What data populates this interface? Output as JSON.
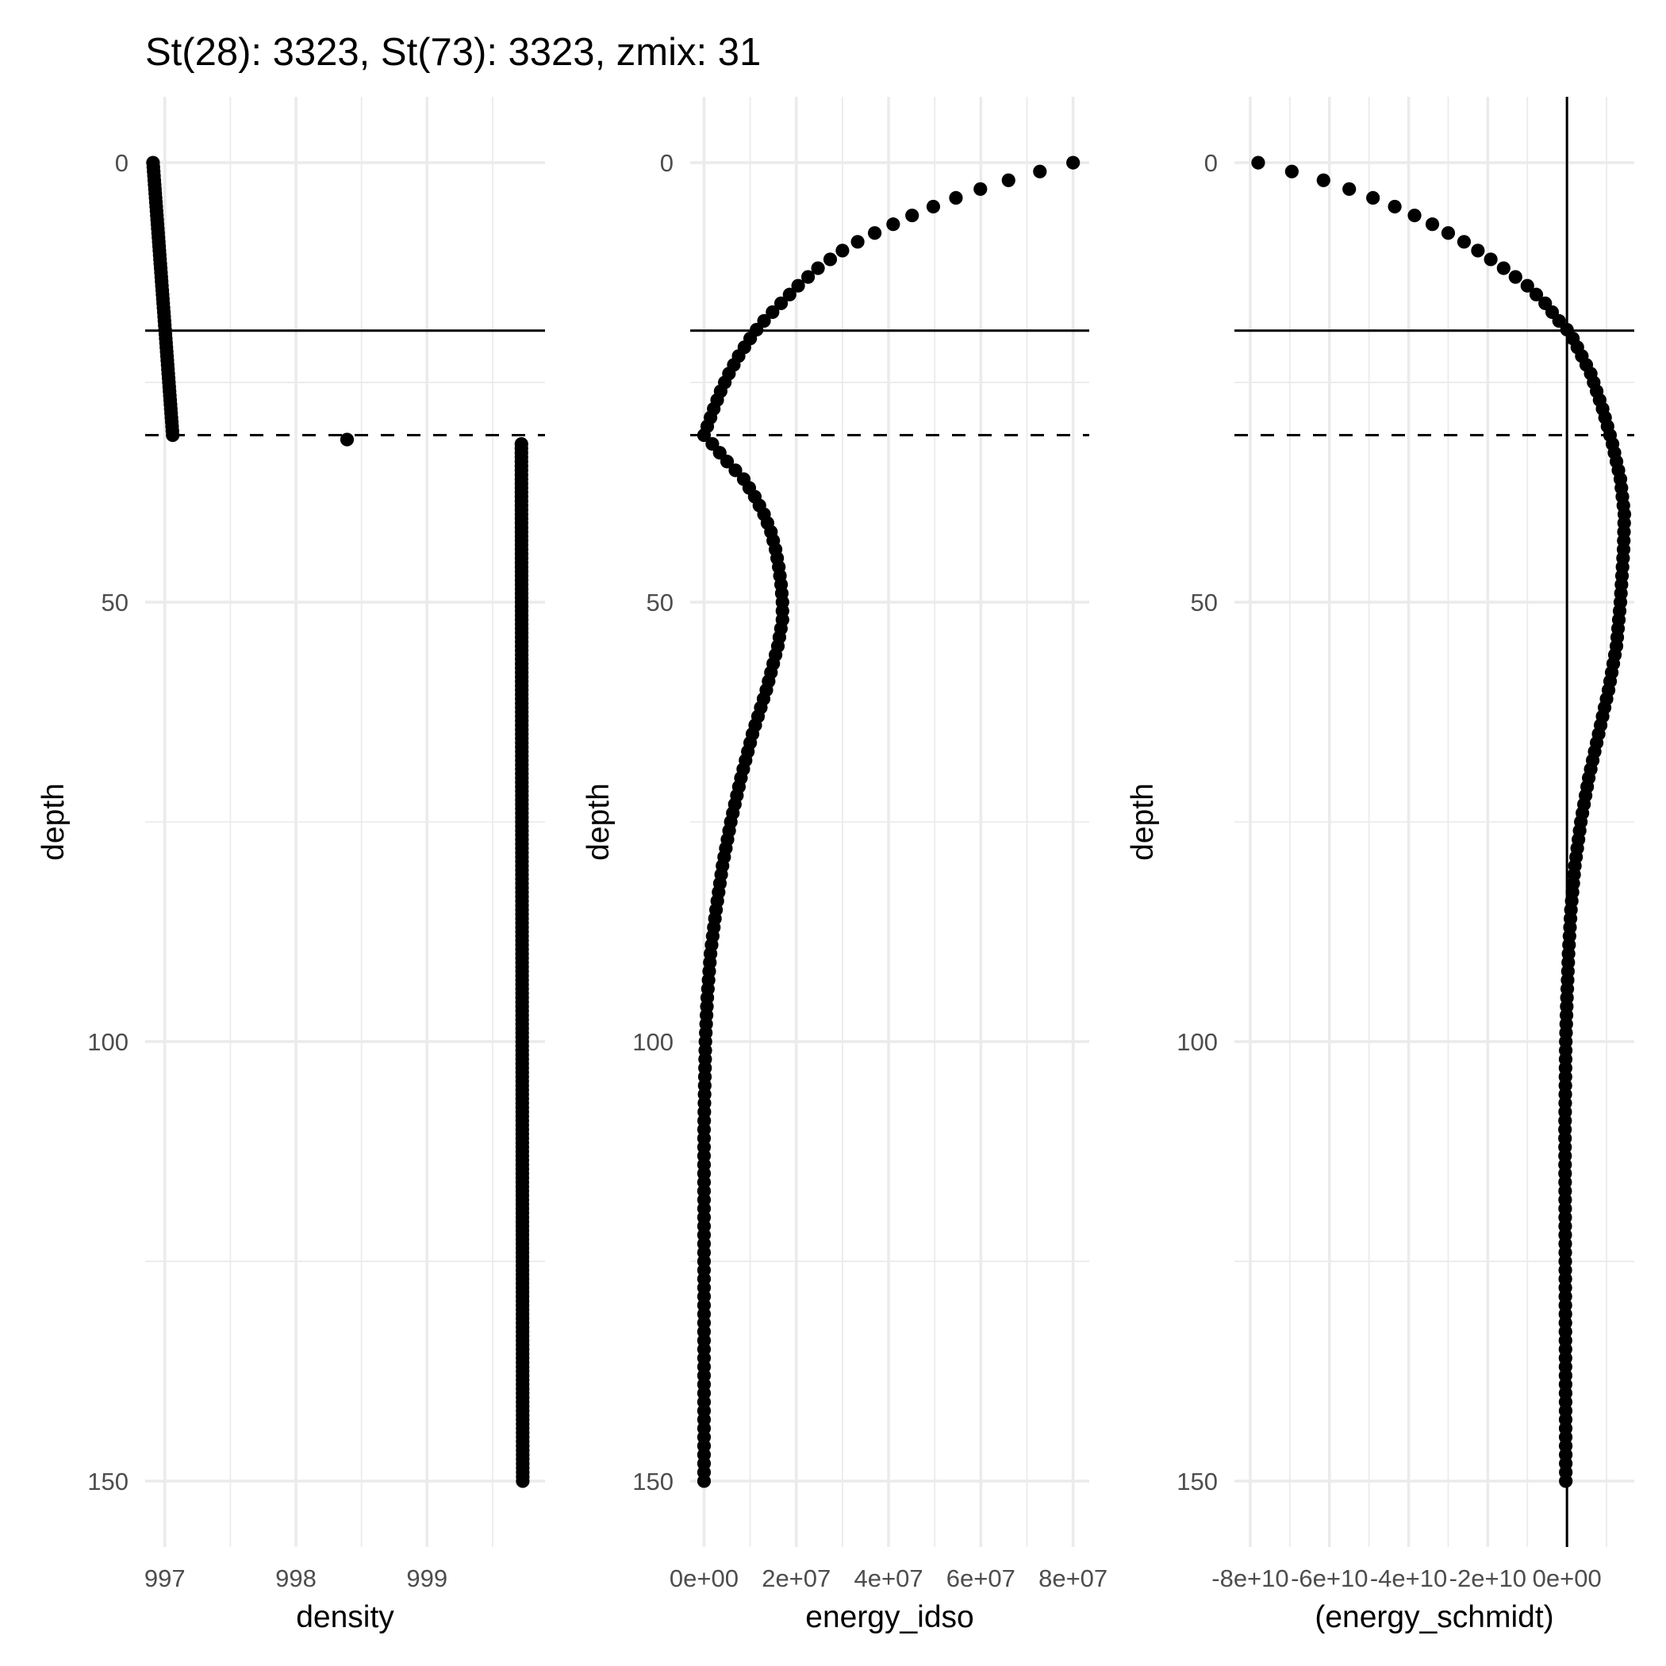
{
  "title": "St(28): 3323, St(73): 3323, zmix: 31",
  "chart_data": [
    {
      "type": "scatter",
      "panel": "density",
      "xlabel": "density",
      "ylabel": "depth",
      "y_reversed": true,
      "xlim": [
        996.85,
        999.9
      ],
      "ylim": [
        -7.5,
        157.5
      ],
      "x_ticks": [
        997,
        998,
        999
      ],
      "x_tick_labels": [
        "997",
        "998",
        "999"
      ],
      "y_ticks": [
        0,
        50,
        100,
        150
      ],
      "y_tick_labels": [
        "0",
        "50",
        "100",
        "150"
      ],
      "grid": true,
      "hlines": [
        {
          "y": 19.1,
          "style": "solid"
        },
        {
          "y": 31,
          "style": "dashed"
        }
      ],
      "vlines": [],
      "curve": {
        "depth_step": 0.5,
        "x_knots": [
          [
            0,
            996.91
          ],
          [
            31,
            997.06
          ],
          [
            32,
            999.72
          ],
          [
            150,
            999.73
          ]
        ],
        "y_knots": [
          [
            0,
            0
          ],
          [
            150,
            150
          ]
        ]
      }
    },
    {
      "type": "scatter",
      "panel": "energy_idso",
      "xlabel": "energy_idso",
      "ylabel": "depth",
      "y_reversed": true,
      "xlim": [
        -3000000,
        83500000
      ],
      "ylim": [
        -7.5,
        157.5
      ],
      "x_ticks": [
        0,
        20000000,
        40000000,
        60000000,
        80000000
      ],
      "x_tick_labels": [
        "0e+00",
        "2e+07",
        "4e+07",
        "6e+07",
        "8e+07"
      ],
      "y_ticks": [
        0,
        50,
        100,
        150
      ],
      "y_tick_labels": [
        "0",
        "50",
        "100",
        "150"
      ],
      "grid": true,
      "hlines": [
        {
          "y": 19.1,
          "style": "solid"
        },
        {
          "y": 31,
          "style": "dashed"
        }
      ],
      "vlines": [],
      "curve": {
        "depth_step": 1,
        "x_knots": [
          [
            0,
            80000000
          ],
          [
            1,
            72800000
          ],
          [
            2,
            66000000
          ],
          [
            3,
            59900000
          ],
          [
            4,
            54600000
          ],
          [
            5,
            49700000
          ],
          [
            6,
            45100000
          ],
          [
            7,
            41000000
          ],
          [
            8,
            37000000
          ],
          [
            9,
            33300000
          ],
          [
            10,
            30000000
          ],
          [
            12,
            24700000
          ],
          [
            14,
            20400000
          ],
          [
            16,
            16700000
          ],
          [
            18,
            13000000
          ],
          [
            19,
            11400000
          ],
          [
            20,
            10000000
          ],
          [
            22,
            7500000
          ],
          [
            24,
            5400000
          ],
          [
            26,
            3600000
          ],
          [
            28,
            2100000
          ],
          [
            30,
            700000
          ],
          [
            31,
            0
          ],
          [
            32,
            1800000
          ],
          [
            34,
            5000000
          ],
          [
            36,
            8600000
          ],
          [
            38,
            11000000
          ],
          [
            40,
            13000000
          ],
          [
            42,
            14500000
          ],
          [
            44,
            15500000
          ],
          [
            46,
            16200000
          ],
          [
            48,
            16700000
          ],
          [
            50,
            17000000
          ],
          [
            52,
            17000000
          ],
          [
            55,
            16000000
          ],
          [
            60,
            13500000
          ],
          [
            65,
            10500000
          ],
          [
            70,
            8000000
          ],
          [
            75,
            5800000
          ],
          [
            80,
            4000000
          ],
          [
            85,
            2600000
          ],
          [
            90,
            1400000
          ],
          [
            95,
            700000
          ],
          [
            100,
            300000
          ],
          [
            110,
            0
          ],
          [
            150,
            0
          ]
        ],
        "y_knots": [
          [
            0,
            0
          ],
          [
            150,
            150
          ]
        ]
      }
    },
    {
      "type": "scatter",
      "panel": "energy_schmidt",
      "xlabel": "(energy_schmidt)",
      "ylabel": "depth",
      "y_reversed": true,
      "xlim": [
        -84000000000,
        17000000000
      ],
      "ylim": [
        -7.5,
        157.5
      ],
      "x_ticks": [
        -80000000000,
        -60000000000,
        -40000000000,
        -20000000000,
        0
      ],
      "x_tick_labels": [
        "-8e+10",
        "-6e+10",
        "-4e+10",
        "-2e+10",
        "0e+00"
      ],
      "y_ticks": [
        0,
        50,
        100,
        150
      ],
      "y_tick_labels": [
        "0",
        "50",
        "100",
        "150"
      ],
      "grid": true,
      "hlines": [
        {
          "y": 19.1,
          "style": "solid"
        },
        {
          "y": 31,
          "style": "dashed"
        }
      ],
      "vlines": [
        {
          "x": 0,
          "style": "solid"
        }
      ],
      "curve": {
        "depth_step": 1,
        "x_knots": [
          [
            0,
            -78000000000
          ],
          [
            1,
            -69500000000
          ],
          [
            2,
            -61500000000
          ],
          [
            3,
            -55000000000
          ],
          [
            4,
            -49000000000
          ],
          [
            5,
            -43500000000
          ],
          [
            6,
            -38500000000
          ],
          [
            7,
            -34000000000
          ],
          [
            8,
            -30000000000
          ],
          [
            9,
            -26000000000
          ],
          [
            10,
            -22500000000
          ],
          [
            12,
            -16000000000
          ],
          [
            14,
            -10000000000
          ],
          [
            16,
            -5500000000
          ],
          [
            18,
            -2000000000
          ],
          [
            19,
            0
          ],
          [
            20,
            1500000000
          ],
          [
            24,
            6000000000
          ],
          [
            28,
            9000000000
          ],
          [
            32,
            11500000000
          ],
          [
            36,
            13500000000
          ],
          [
            40,
            14500000000
          ],
          [
            44,
            14300000000
          ],
          [
            50,
            13500000000
          ],
          [
            55,
            12500000000
          ],
          [
            60,
            10500000000
          ],
          [
            65,
            8000000000
          ],
          [
            70,
            5500000000
          ],
          [
            75,
            3500000000
          ],
          [
            80,
            2000000000
          ],
          [
            85,
            1000000000
          ],
          [
            90,
            400000000
          ],
          [
            95,
            0
          ],
          [
            100,
            -300000000
          ],
          [
            110,
            -500000000
          ],
          [
            150,
            -300000000
          ]
        ],
        "y_knots": [
          [
            0,
            0
          ],
          [
            150,
            150
          ]
        ]
      }
    }
  ]
}
